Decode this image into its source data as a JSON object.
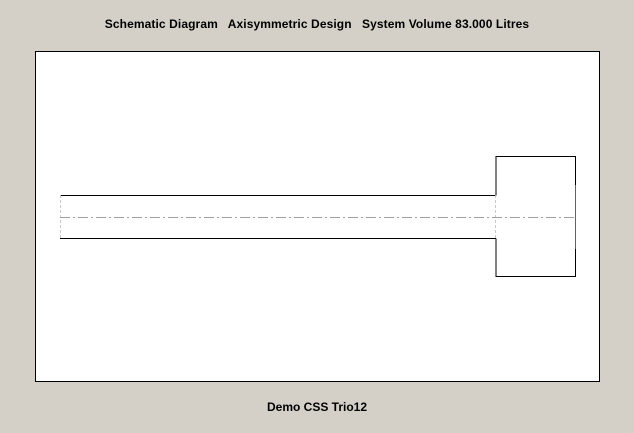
{
  "header": {
    "title": "Schematic Diagram   Axisymmetric Design   System Volume 83.000 Litres"
  },
  "footer": {
    "label": "Demo CSS Trio12"
  },
  "colors": {
    "background": "#d4d0c8",
    "canvas": "#ffffff",
    "outline": "#000000",
    "centerline": "#a0a0a0",
    "boundary": "#c8c8c8",
    "outlet": "#e0206a"
  }
}
